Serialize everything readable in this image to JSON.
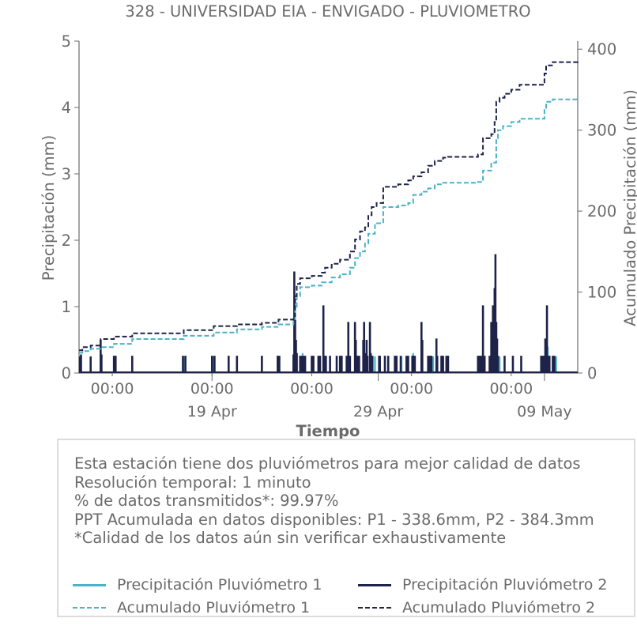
{
  "chart_data": {
    "type": "line",
    "title": "328 - UNIVERSIDAD EIA - ENVIGADO - PLUVIOMETRO",
    "xlabel": "Tiempo",
    "ylabel_left": "Precipitación (mm)",
    "ylabel_right": "Acumulado Precipitación (mm)",
    "ylim_left": [
      0,
      5
    ],
    "ylim_right": [
      0,
      410
    ],
    "yticks_left": [
      "0",
      "1",
      "2",
      "3",
      "4",
      "5"
    ],
    "yticks_right": [
      "0",
      "100",
      "200",
      "300",
      "400"
    ],
    "xlim_days": [
      0,
      30
    ],
    "x_major_ticks": [
      {
        "day": 8.0,
        "label": "19 Apr"
      },
      {
        "day": 18.0,
        "label": "29 Apr"
      },
      {
        "day": 28.0,
        "label": "09 May"
      }
    ],
    "x_minor_ticks": [
      {
        "day": 2.0,
        "label": "00:00"
      },
      {
        "day": 8.0,
        "label": "00:00"
      },
      {
        "day": 14.0,
        "label": "00:00"
      },
      {
        "day": 20.0,
        "label": "00:00"
      },
      {
        "day": 26.0,
        "label": "00:00"
      }
    ],
    "series": [
      {
        "name": "Precipitación Pluviómetro 1",
        "color": "#4ab3c6",
        "style": "bars",
        "points": [
          [
            0.1,
            0.2
          ],
          [
            0.7,
            0.25
          ],
          [
            1.3,
            0.2
          ],
          [
            2.1,
            0.25
          ],
          [
            3.2,
            0.25
          ],
          [
            6.3,
            0.25
          ],
          [
            8.1,
            0.25
          ],
          [
            9.0,
            0.25
          ],
          [
            9.5,
            0.25
          ],
          [
            11.0,
            0.25
          ],
          [
            12.0,
            0.25
          ],
          [
            12.9,
            0.25
          ],
          [
            13.1,
            0.3
          ],
          [
            13.3,
            0.25
          ],
          [
            13.45,
            0.3
          ],
          [
            13.6,
            0.25
          ],
          [
            14.0,
            0.25
          ],
          [
            14.5,
            0.25
          ],
          [
            14.7,
            0.25
          ],
          [
            15.1,
            0.25
          ],
          [
            15.7,
            0.25
          ],
          [
            16.2,
            0.25
          ],
          [
            16.6,
            0.5
          ],
          [
            16.8,
            0.25
          ],
          [
            17.1,
            0.25
          ],
          [
            17.3,
            0.4
          ],
          [
            17.6,
            0.25
          ],
          [
            17.8,
            0.25
          ],
          [
            18.1,
            0.25
          ],
          [
            18.4,
            0.25
          ],
          [
            18.6,
            0.25
          ],
          [
            19.1,
            0.25
          ],
          [
            19.4,
            0.25
          ],
          [
            19.7,
            0.25
          ],
          [
            20.1,
            0.3
          ],
          [
            20.6,
            0.25
          ],
          [
            21.0,
            0.25
          ],
          [
            21.3,
            0.25
          ],
          [
            21.5,
            0.3
          ],
          [
            21.8,
            0.25
          ],
          [
            22.1,
            0.25
          ],
          [
            24.0,
            0.25
          ],
          [
            24.3,
            0.25
          ],
          [
            24.8,
            0.25
          ],
          [
            25.1,
            0.4
          ],
          [
            25.3,
            0.25
          ],
          [
            25.6,
            0.25
          ],
          [
            26.1,
            0.25
          ],
          [
            27.9,
            0.25
          ],
          [
            28.2,
            0.4
          ],
          [
            28.5,
            0.25
          ],
          [
            28.7,
            0.25
          ]
        ]
      },
      {
        "name": "Precipitación Pluviómetro 2",
        "color": "#1e2349",
        "style": "bars",
        "points": [
          [
            0.05,
            0.25
          ],
          [
            0.12,
            0.28
          ],
          [
            0.7,
            0.25
          ],
          [
            1.3,
            0.5
          ],
          [
            1.35,
            0.28
          ],
          [
            2.1,
            0.26
          ],
          [
            2.2,
            0.26
          ],
          [
            3.2,
            0.26
          ],
          [
            6.25,
            0.26
          ],
          [
            6.4,
            0.26
          ],
          [
            8.0,
            0.26
          ],
          [
            8.15,
            0.26
          ],
          [
            9.0,
            0.26
          ],
          [
            9.5,
            0.26
          ],
          [
            11.0,
            0.26
          ],
          [
            11.95,
            0.26
          ],
          [
            12.05,
            0.26
          ],
          [
            12.9,
            0.28
          ],
          [
            12.95,
            1.53
          ],
          [
            13.0,
            0.8
          ],
          [
            13.05,
            0.5
          ],
          [
            13.1,
            0.3
          ],
          [
            13.3,
            0.26
          ],
          [
            13.4,
            0.26
          ],
          [
            13.5,
            0.26
          ],
          [
            13.6,
            0.26
          ],
          [
            14.0,
            0.26
          ],
          [
            14.1,
            0.26
          ],
          [
            14.4,
            0.26
          ],
          [
            14.5,
            0.26
          ],
          [
            14.7,
            1.02
          ],
          [
            14.75,
            0.26
          ],
          [
            14.85,
            0.26
          ],
          [
            15.1,
            0.26
          ],
          [
            15.5,
            0.26
          ],
          [
            15.7,
            0.26
          ],
          [
            15.8,
            0.26
          ],
          [
            16.1,
            0.26
          ],
          [
            16.2,
            0.77
          ],
          [
            16.3,
            0.26
          ],
          [
            16.6,
            0.77
          ],
          [
            16.65,
            0.5
          ],
          [
            16.75,
            0.26
          ],
          [
            16.85,
            0.26
          ],
          [
            17.1,
            0.5
          ],
          [
            17.15,
            0.77
          ],
          [
            17.2,
            0.3
          ],
          [
            17.3,
            0.5
          ],
          [
            17.35,
            0.26
          ],
          [
            17.5,
            0.77
          ],
          [
            17.55,
            0.3
          ],
          [
            17.65,
            0.26
          ],
          [
            18.05,
            0.26
          ],
          [
            18.1,
            0.26
          ],
          [
            18.4,
            0.26
          ],
          [
            18.6,
            0.26
          ],
          [
            19.0,
            0.26
          ],
          [
            19.1,
            0.26
          ],
          [
            19.35,
            0.26
          ],
          [
            19.7,
            0.26
          ],
          [
            19.8,
            0.26
          ],
          [
            20.05,
            0.26
          ],
          [
            20.1,
            0.26
          ],
          [
            20.2,
            0.26
          ],
          [
            20.6,
            0.77
          ],
          [
            20.65,
            0.5
          ],
          [
            21.0,
            0.26
          ],
          [
            21.1,
            0.26
          ],
          [
            21.2,
            0.26
          ],
          [
            21.5,
            0.52
          ],
          [
            21.55,
            0.26
          ],
          [
            21.8,
            0.26
          ],
          [
            21.9,
            0.26
          ],
          [
            22.1,
            0.26
          ],
          [
            22.2,
            0.26
          ],
          [
            24.0,
            0.26
          ],
          [
            24.1,
            0.26
          ],
          [
            24.2,
            0.26
          ],
          [
            24.3,
            1.02
          ],
          [
            24.4,
            0.26
          ],
          [
            24.7,
            0.26
          ],
          [
            24.8,
            0.77
          ],
          [
            24.85,
            0.5
          ],
          [
            24.9,
            1.02
          ],
          [
            25.0,
            1.28
          ],
          [
            25.05,
            1.79
          ],
          [
            25.1,
            0.77
          ],
          [
            25.15,
            0.52
          ],
          [
            25.2,
            0.26
          ],
          [
            25.6,
            0.26
          ],
          [
            26.1,
            0.26
          ],
          [
            26.6,
            0.26
          ],
          [
            27.8,
            0.26
          ],
          [
            27.9,
            0.26
          ],
          [
            28.0,
            0.26
          ],
          [
            28.05,
            0.52
          ],
          [
            28.15,
            1.02
          ],
          [
            28.2,
            0.26
          ],
          [
            28.3,
            0.26
          ],
          [
            28.5,
            0.26
          ],
          [
            28.6,
            0.26
          ]
        ]
      },
      {
        "name": "Acumulado Pluviómetro 1",
        "color": "#4ab3c6",
        "style": "dashed",
        "points": [
          [
            0,
            25
          ],
          [
            0.2,
            27
          ],
          [
            0.7,
            30
          ],
          [
            1.3,
            32
          ],
          [
            2.1,
            36
          ],
          [
            3.2,
            42
          ],
          [
            6.3,
            46
          ],
          [
            8.1,
            50
          ],
          [
            9.5,
            54
          ],
          [
            11.0,
            57
          ],
          [
            12.0,
            60
          ],
          [
            12.9,
            65
          ],
          [
            13.0,
            80
          ],
          [
            13.1,
            95
          ],
          [
            13.3,
            106
          ],
          [
            14.0,
            108
          ],
          [
            14.6,
            112
          ],
          [
            15.2,
            118
          ],
          [
            15.7,
            122
          ],
          [
            16.3,
            130
          ],
          [
            16.6,
            142
          ],
          [
            16.9,
            150
          ],
          [
            17.2,
            160
          ],
          [
            17.4,
            172
          ],
          [
            17.8,
            185
          ],
          [
            18.3,
            205
          ],
          [
            19.2,
            207
          ],
          [
            19.8,
            210
          ],
          [
            20.1,
            220
          ],
          [
            20.6,
            224
          ],
          [
            21.0,
            228
          ],
          [
            21.4,
            233
          ],
          [
            21.9,
            235
          ],
          [
            22.2,
            235
          ],
          [
            24.0,
            236
          ],
          [
            24.3,
            250
          ],
          [
            24.8,
            260
          ],
          [
            25.1,
            290
          ],
          [
            25.2,
            300
          ],
          [
            25.5,
            305
          ],
          [
            26.0,
            310
          ],
          [
            26.5,
            314
          ],
          [
            27.8,
            314
          ],
          [
            28.0,
            325
          ],
          [
            28.1,
            335
          ],
          [
            28.5,
            338
          ],
          [
            30.0,
            338.6
          ]
        ]
      },
      {
        "name": "Acumulado Pluviómetro 2",
        "color": "#1e2349",
        "style": "dashed",
        "points": [
          [
            0,
            28
          ],
          [
            0.2,
            32
          ],
          [
            0.7,
            34
          ],
          [
            1.3,
            42
          ],
          [
            2.1,
            45
          ],
          [
            3.2,
            49
          ],
          [
            6.3,
            53
          ],
          [
            8.1,
            58
          ],
          [
            9.5,
            60
          ],
          [
            11.0,
            62
          ],
          [
            12.0,
            66
          ],
          [
            12.9,
            70
          ],
          [
            13.0,
            95
          ],
          [
            13.1,
            110
          ],
          [
            13.3,
            117
          ],
          [
            14.0,
            120
          ],
          [
            14.6,
            124
          ],
          [
            14.8,
            130
          ],
          [
            15.2,
            135
          ],
          [
            15.7,
            140
          ],
          [
            16.3,
            150
          ],
          [
            16.6,
            165
          ],
          [
            16.9,
            175
          ],
          [
            17.2,
            180
          ],
          [
            17.4,
            195
          ],
          [
            17.6,
            205
          ],
          [
            17.9,
            210
          ],
          [
            18.3,
            230
          ],
          [
            19.2,
            233
          ],
          [
            19.8,
            238
          ],
          [
            20.1,
            243
          ],
          [
            20.6,
            248
          ],
          [
            21.0,
            256
          ],
          [
            21.4,
            262
          ],
          [
            21.9,
            266
          ],
          [
            22.2,
            267
          ],
          [
            24.0,
            270
          ],
          [
            24.3,
            290
          ],
          [
            24.8,
            295
          ],
          [
            25.0,
            310
          ],
          [
            25.1,
            335
          ],
          [
            25.3,
            340
          ],
          [
            25.6,
            345
          ],
          [
            26.0,
            350
          ],
          [
            26.5,
            356
          ],
          [
            27.8,
            356
          ],
          [
            28.0,
            370
          ],
          [
            28.1,
            380
          ],
          [
            28.5,
            384
          ],
          [
            30.0,
            384.3
          ]
        ]
      }
    ]
  },
  "info": {
    "lines": [
      "Esta estación tiene dos pluviómetros para mejor calidad de datos",
      "Resolución temporal: 1 minuto",
      "% de datos transmitidos*: 99.97%",
      "PPT Acumulada en datos disponibles: P1 - 338.6mm, P2 - 384.3mm",
      "*Calidad de los datos aún sin verificar exhaustivamente"
    ]
  },
  "legend": {
    "items": [
      {
        "label": "Precipitación Pluviómetro 1",
        "color": "#4ab3c6",
        "style": "solid"
      },
      {
        "label": "Precipitación Pluviómetro 2",
        "color": "#1e2349",
        "style": "solid"
      },
      {
        "label": "Acumulado Pluviómetro 1",
        "color": "#4ab3c6",
        "style": "dashed"
      },
      {
        "label": "Acumulado Pluviómetro 2",
        "color": "#1e2349",
        "style": "dashed"
      }
    ]
  }
}
